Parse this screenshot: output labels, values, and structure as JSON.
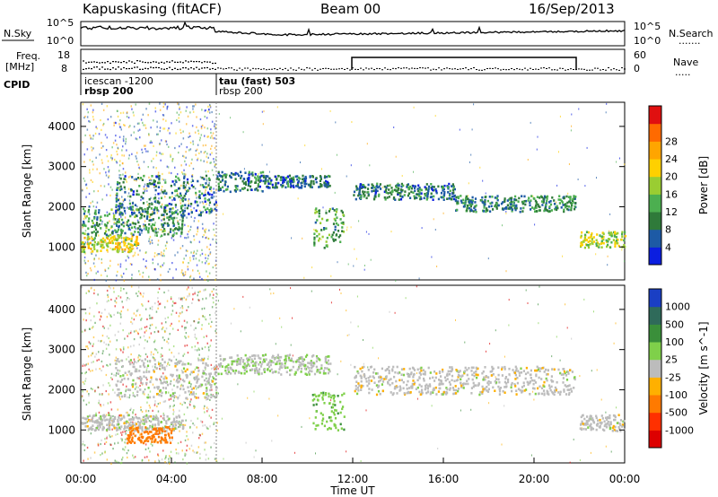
{
  "header": {
    "title": "Kapuskasing (fitACF)",
    "beam": "Beam 00",
    "date": "16/Sep/2013"
  },
  "noise_panel": {
    "left_label": "N.Sky",
    "left_ticks": [
      "10^5",
      "10^0"
    ],
    "right_ticks": [
      "10^5",
      "10^0"
    ],
    "right_label": "N.Search",
    "right_legend_line": "......."
  },
  "freq_panel": {
    "left_label_1": "Freq.",
    "left_label_2": "[MHz]",
    "left_ticks": [
      "18",
      "8"
    ],
    "right_ticks": [
      "60",
      "0"
    ],
    "right_label": "Nave",
    "right_legend_line": "....."
  },
  "cpid_panel": {
    "label": "CPID",
    "entries": [
      {
        "name": "icescan -1200",
        "sub": "rbsp 200"
      },
      {
        "name": "tau (fast) 503",
        "sub": "rbsp 200"
      }
    ]
  },
  "x_axis": {
    "ticks": [
      "00:00",
      "04:00",
      "08:00",
      "12:00",
      "16:00",
      "20:00",
      "00:00"
    ],
    "label": "Time UT"
  },
  "chart_data": [
    {
      "type": "heatmap",
      "name": "power",
      "ylabel": "Slant Range [km]",
      "yticks": [
        "1000",
        "2000",
        "3000",
        "4000"
      ],
      "ylim": [
        180,
        4600
      ],
      "xlim_hours": [
        0,
        24
      ],
      "colorbar": {
        "label": "Power [dB]",
        "ticks": [
          "4",
          "8",
          "12",
          "16",
          "20",
          "24",
          "28"
        ],
        "colors": [
          "#0b1ee0",
          "#1d5aa5",
          "#2f7a3a",
          "#4caf50",
          "#9acd32",
          "#ffd000",
          "#ffa500",
          "#ff6a00",
          "#e01010"
        ]
      },
      "bands": [
        {
          "t0": 0.0,
          "t1": 2.5,
          "r0": 900,
          "r1": 1300,
          "level": 16
        },
        {
          "t0": 0.0,
          "t1": 4.5,
          "r0": 1300,
          "r1": 2000,
          "level": 8
        },
        {
          "t0": 1.5,
          "t1": 6.0,
          "r0": 1800,
          "r1": 2800,
          "level": 6
        },
        {
          "t0": 6.0,
          "t1": 8.0,
          "r0": 2400,
          "r1": 2900,
          "level": 6
        },
        {
          "t0": 8.0,
          "t1": 11.0,
          "r0": 2500,
          "r1": 2800,
          "level": 5
        },
        {
          "t0": 10.2,
          "t1": 11.6,
          "r0": 1000,
          "r1": 2000,
          "level": 10
        },
        {
          "t0": 12.0,
          "t1": 16.5,
          "r0": 2200,
          "r1": 2600,
          "level": 6
        },
        {
          "t0": 16.5,
          "t1": 21.8,
          "r0": 1900,
          "r1": 2300,
          "level": 7
        },
        {
          "t0": 22.0,
          "t1": 24.0,
          "r0": 1000,
          "r1": 1400,
          "level": 14
        }
      ]
    },
    {
      "type": "heatmap",
      "name": "velocity",
      "ylabel": "Slant Range [km]",
      "yticks": [
        "1000",
        "2000",
        "3000",
        "4000"
      ],
      "ylim": [
        180,
        4600
      ],
      "xlim_hours": [
        0,
        24
      ],
      "colorbar": {
        "label": "Velocity [m s^-1]",
        "ticks": [
          "1000",
          "500",
          "100",
          "25",
          "-25",
          "-100",
          "-500",
          "-1000"
        ],
        "colors": [
          "#1a3fc4",
          "#2f6a5a",
          "#3a8f3a",
          "#7fd04a",
          "#bcbcbc",
          "#ffb000",
          "#ff7a00",
          "#ff3000",
          "#dd0000"
        ]
      },
      "bands": [
        {
          "t0": 0.0,
          "t1": 4.5,
          "r0": 1000,
          "r1": 1400,
          "vel": 0
        },
        {
          "t0": 2.0,
          "t1": 4.0,
          "r0": 700,
          "r1": 1100,
          "vel": -300
        },
        {
          "t0": 1.5,
          "t1": 6.0,
          "r0": 1800,
          "r1": 2800,
          "vel": 0
        },
        {
          "t0": 6.0,
          "t1": 11.0,
          "r0": 2400,
          "r1": 2900,
          "vel": 20
        },
        {
          "t0": 10.2,
          "t1": 11.6,
          "r0": 1000,
          "r1": 2000,
          "vel": 80
        },
        {
          "t0": 12.0,
          "t1": 21.8,
          "r0": 1900,
          "r1": 2600,
          "vel": 0
        },
        {
          "t0": 22.0,
          "t1": 24.0,
          "r0": 1000,
          "r1": 1400,
          "vel": 0
        }
      ]
    }
  ]
}
